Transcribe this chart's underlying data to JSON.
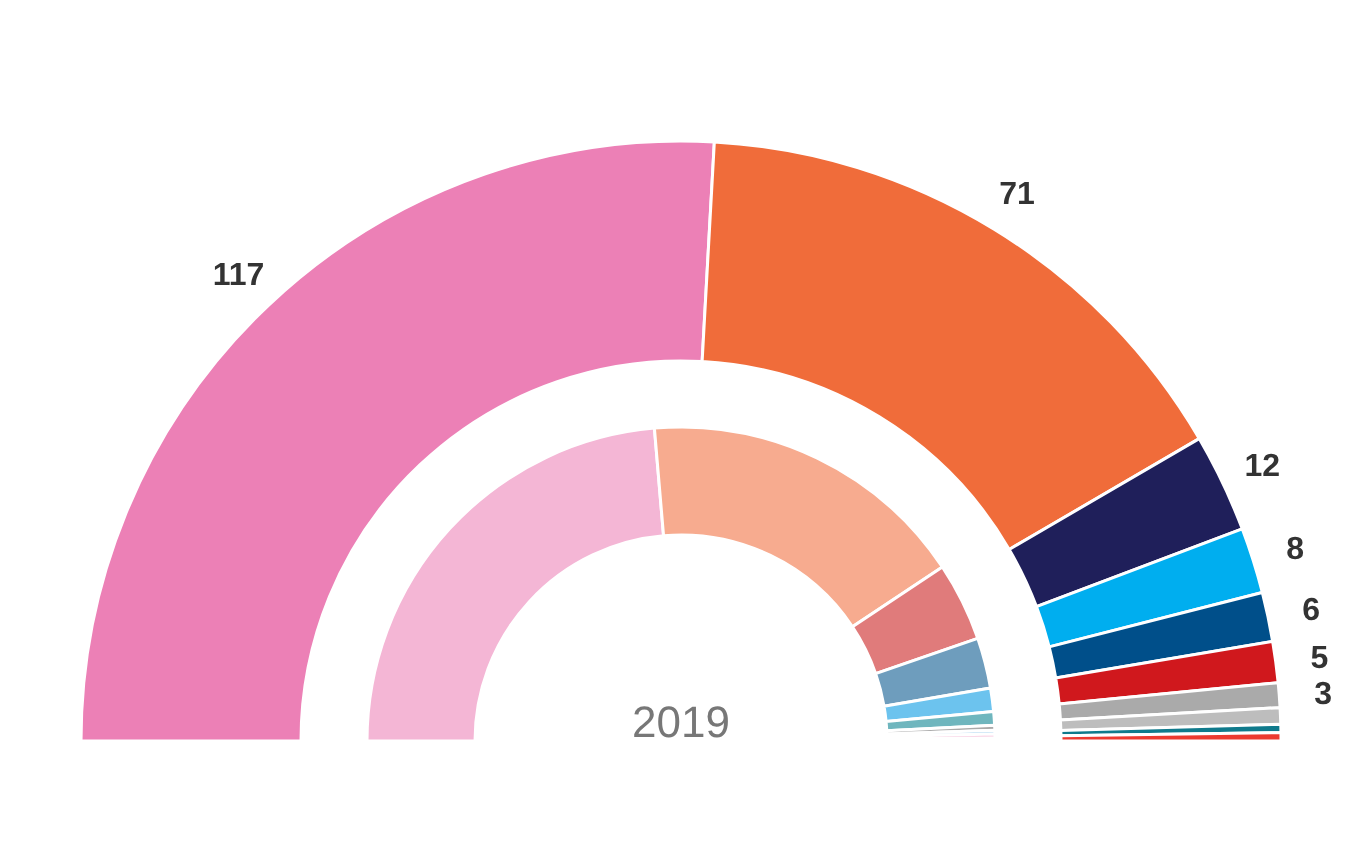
{
  "chart_data": {
    "type": "donut",
    "categories": [
      null,
      null,
      null,
      null,
      null,
      null,
      null,
      null,
      null,
      null
    ],
    "series": [
      {
        "values": [
          117,
          71,
          12,
          8,
          6,
          5,
          3,
          2,
          1,
          1
        ],
        "colors": [
          "#ec80b6",
          "#f06c3a",
          "#1f1f5a",
          "#00aeef",
          "#004f8a",
          "#d0181d",
          "#aaaaaa",
          "#bdbdbd",
          "#0f7a8c",
          "#ec3a30"
        ],
        "value_labels": [
          "117",
          "71",
          "12",
          "8",
          "6",
          "5",
          "3",
          null,
          null,
          null
        ]
      },
      {
        "name": "2019",
        "values": [
          47.3,
          34,
          8.1,
          5.2,
          2.4,
          1.4,
          0.5,
          0.4,
          0.4,
          0.3
        ],
        "colors": [
          "#f4b6d5",
          "#f7ab8f",
          "#e07b7b",
          "#6e9dbd",
          "#6cc3ee",
          "#6fb6be",
          "#aaaaaa",
          "#a9d4f0",
          "#f4b6d5",
          "#ec7070"
        ]
      }
    ]
  }
}
